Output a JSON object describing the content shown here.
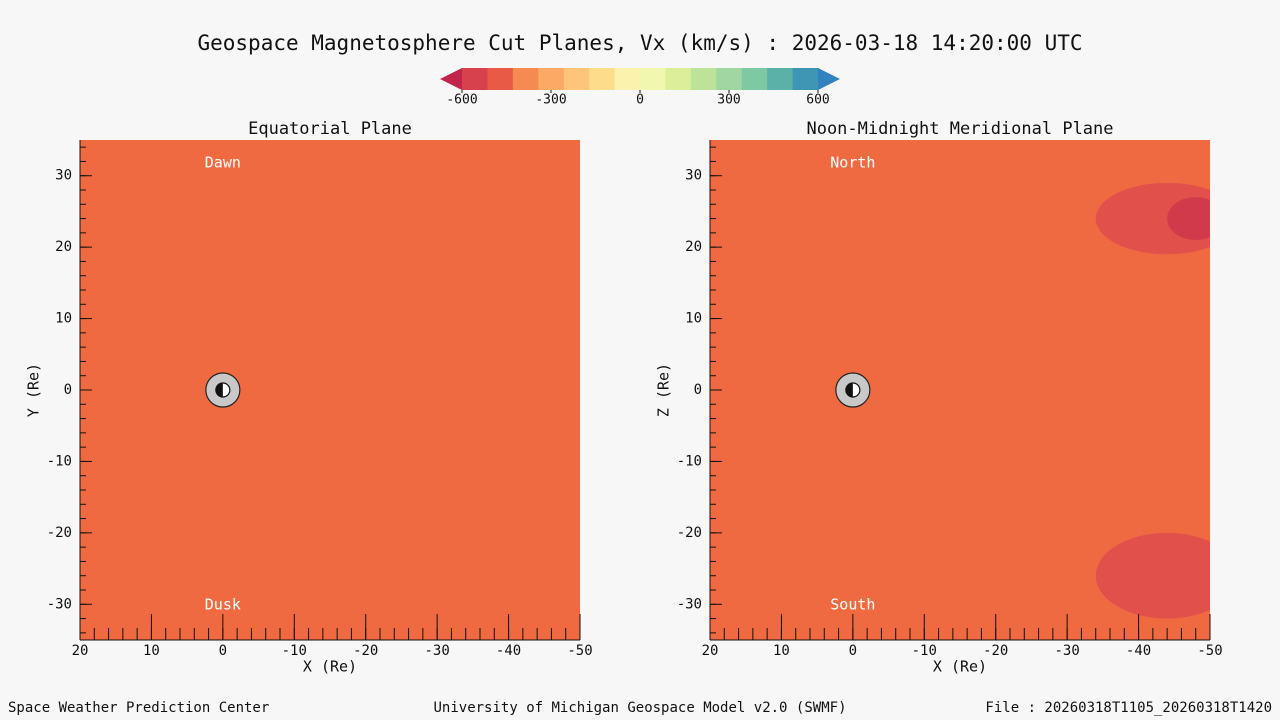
{
  "title": "Geospace Magnetosphere Cut Planes, Vx (km/s) : 2026-03-18 14:20:00 UTC",
  "colorbar": {
    "lim": [
      -600,
      600
    ],
    "ticks": [
      -600,
      -300,
      0,
      300,
      600
    ],
    "colors": [
      "#c2254a",
      "#d7414e",
      "#e85a47",
      "#f68a53",
      "#fba965",
      "#fdc47a",
      "#fddc8c",
      "#fbf2ae",
      "#f2f7b0",
      "#dcee9a",
      "#bde39a",
      "#9fd6a2",
      "#7fc8a4",
      "#5bb0a8",
      "#3f96b4",
      "#3382c0"
    ]
  },
  "chart_data": [
    {
      "type": "contour",
      "title": "Equatorial Plane",
      "x_label": "X (Re)",
      "y_label": "Y (Re)",
      "xlim": [
        20,
        -50
      ],
      "ylim": [
        -35,
        35
      ],
      "xticks": [
        20,
        10,
        0,
        -10,
        -20,
        -30,
        -40,
        -50
      ],
      "yticks": [
        -30,
        -20,
        -10,
        0,
        10,
        20,
        30
      ],
      "annotations": [
        "Dawn",
        "Dusk"
      ]
    },
    {
      "type": "contour",
      "title": "Noon-Midnight Meridional Plane",
      "x_label": "X (Re)",
      "y_label": "Z (Re)",
      "xlim": [
        20,
        -50
      ],
      "ylim": [
        -35,
        35
      ],
      "xticks": [
        20,
        10,
        0,
        -10,
        -20,
        -30,
        -40,
        -50
      ],
      "yticks": [
        -30,
        -20,
        -10,
        0,
        10,
        20,
        30
      ],
      "annotations": [
        "North",
        "South"
      ]
    }
  ],
  "footer": {
    "left": "Space Weather Prediction Center",
    "center": "University of Michigan Geospace Model v2.0 (SWMF)",
    "right": "File : 20260318T1105_20260318T1420"
  }
}
